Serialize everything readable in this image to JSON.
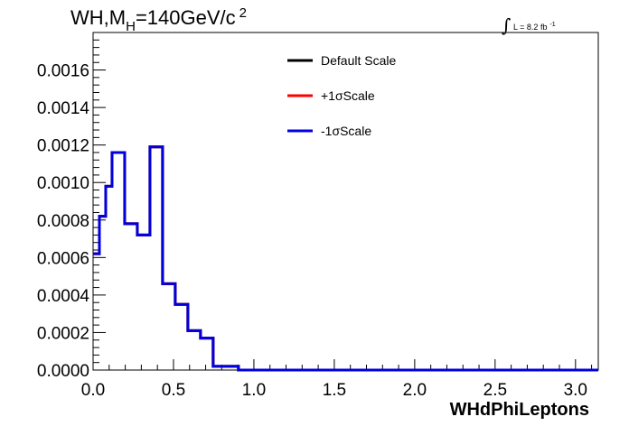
{
  "chart_data": {
    "type": "line",
    "title_main": "WH,M",
    "title_sub": "H",
    "title_rest": "=140GeV/c",
    "title_sup": "2",
    "lumi_integral": "∫",
    "lumi_text": "L = 8.2 fb",
    "lumi_sup": "-1",
    "xlabel": "WHdPhiLeptons",
    "ylabel": "",
    "xlim": [
      0,
      3.1416
    ],
    "ylim": [
      0,
      0.0018
    ],
    "x_ticks": [
      "0.0",
      "0.5",
      "1.0",
      "1.5",
      "2.0",
      "2.5",
      "3.0"
    ],
    "x_tick_values": [
      0,
      0.5,
      1.0,
      1.5,
      2.0,
      2.5,
      3.0
    ],
    "y_ticks": [
      "0.0000",
      "0.0002",
      "0.0004",
      "0.0006",
      "0.0008",
      "0.0010",
      "0.0012",
      "0.0014",
      "0.0016"
    ],
    "y_tick_values": [
      0,
      0.0002,
      0.0004,
      0.0006,
      0.0008,
      0.001,
      0.0012,
      0.0014,
      0.0016
    ],
    "bin_width": 0.0393,
    "bin_values": [
      0.00062,
      0.00082,
      0.00098,
      0.00116,
      0.00116,
      0.00078,
      0.00078,
      0.00072,
      0.00072,
      0.00119,
      0.00119,
      0.00046,
      0.00046,
      0.00035,
      0.00035,
      0.00021,
      0.00021,
      0.00017,
      0.00017,
      2e-05,
      2e-05,
      2e-05,
      2e-05,
      0.0,
      0.0,
      0.0,
      0.0,
      0.0,
      0.0,
      0.0,
      0.0,
      0.0,
      0.0,
      0.0,
      0.0,
      0.0,
      0.0,
      0.0,
      0.0,
      0.0,
      0.0,
      0.0,
      0.0,
      0.0,
      0.0,
      0.0,
      0.0,
      0.0,
      0.0,
      0.0,
      0.0,
      0.0,
      0.0,
      0.0,
      0.0,
      0.0,
      0.0,
      0.0,
      0.0,
      0.0,
      0.0,
      0.0,
      0.0,
      0.0,
      0.0,
      0.0,
      0.0,
      0.0,
      0.0,
      0.0,
      0.0,
      0.0,
      0.0,
      0.0,
      0.0,
      0.0,
      0.0,
      0.0,
      0.0,
      0.0
    ],
    "series": [
      {
        "name": "Default Scale",
        "color": "#000000"
      },
      {
        "name": "+1σScale",
        "color": "#ff0000"
      },
      {
        "name": "-1σScale",
        "color": "#0000dd"
      }
    ],
    "legend_position": "top-center",
    "grid": false
  }
}
